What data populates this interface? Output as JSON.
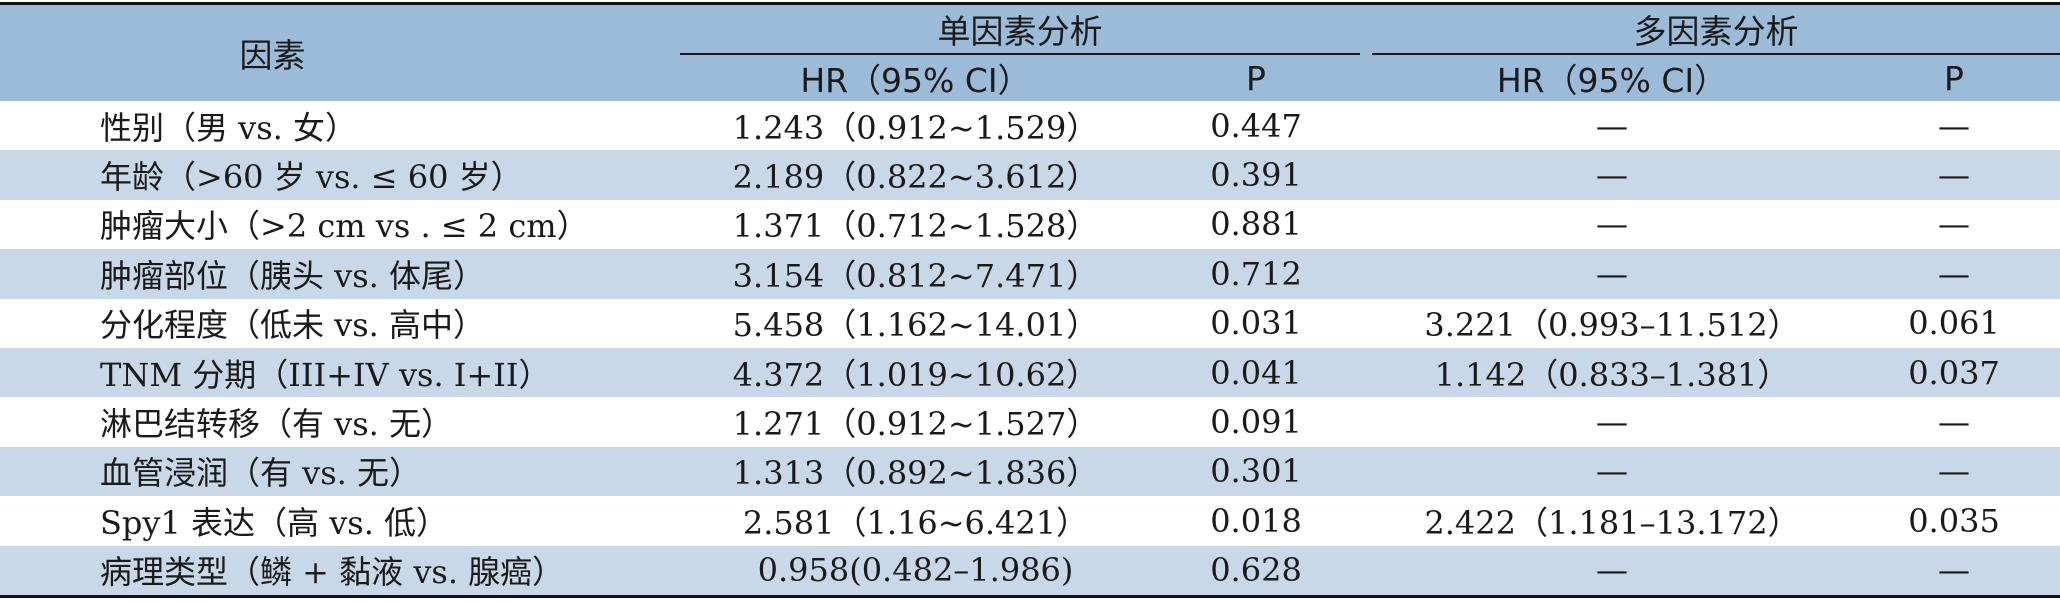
{
  "table": {
    "headers": {
      "factor": "因素",
      "univariate": "单因素分析",
      "multivariate": "多因素分析",
      "hr_ci_1": "HR（95% CI）",
      "p_1": "P",
      "hr_ci_2": "HR（95% CI）",
      "p_2": "P"
    },
    "rows": [
      {
        "factor": "性别（男 vs. 女）",
        "hr1": "1.243（0.912~1.529）",
        "p1": "0.447",
        "hr2": "—",
        "p2": "—"
      },
      {
        "factor": "年龄（>60 岁 vs. ≤ 60 岁）",
        "hr1": "2.189（0.822~3.612）",
        "p1": "0.391",
        "hr2": "—",
        "p2": "—"
      },
      {
        "factor": "肿瘤大小（>2 cm vs . ≤ 2 cm）",
        "hr1": "1.371（0.712~1.528）",
        "p1": "0.881",
        "hr2": "—",
        "p2": "—"
      },
      {
        "factor": "肿瘤部位（胰头 vs. 体尾）",
        "hr1": "3.154（0.812~7.471）",
        "p1": "0.712",
        "hr2": "—",
        "p2": "—"
      },
      {
        "factor": "分化程度（低未 vs. 高中）",
        "hr1": "5.458（1.162~14.01）",
        "p1": "0.031",
        "hr2": "3.221（0.993–11.512）",
        "p2": "0.061"
      },
      {
        "factor": "TNM 分期（III+IV vs. I+II）",
        "hr1": "4.372（1.019~10.62）",
        "p1": "0.041",
        "hr2": "1.142（0.833–1.381）",
        "p2": "0.037"
      },
      {
        "factor": "淋巴结转移（有 vs. 无）",
        "hr1": "1.271（0.912~1.527）",
        "p1": "0.091",
        "hr2": "—",
        "p2": "—"
      },
      {
        "factor": "血管浸润（有 vs. 无）",
        "hr1": "1.313（0.892~1.836）",
        "p1": "0.301",
        "hr2": "—",
        "p2": "—"
      },
      {
        "factor": "Spy1 表达（高 vs. 低）",
        "hr1": "2.581（1.16~6.421）",
        "p1": "0.018",
        "hr2": "2.422（1.181–13.172）",
        "p2": "0.035"
      },
      {
        "factor": "病理类型（鳞 + 黏液 vs. 腺癌）",
        "hr1": "0.958(0.482–1.986)",
        "p1": "0.628",
        "hr2": "—",
        "p2": "—"
      }
    ]
  },
  "colors": {
    "header_bg": "#9bbbd8",
    "alt_row_bg": "#c9d8e8",
    "rule": "#111111"
  }
}
